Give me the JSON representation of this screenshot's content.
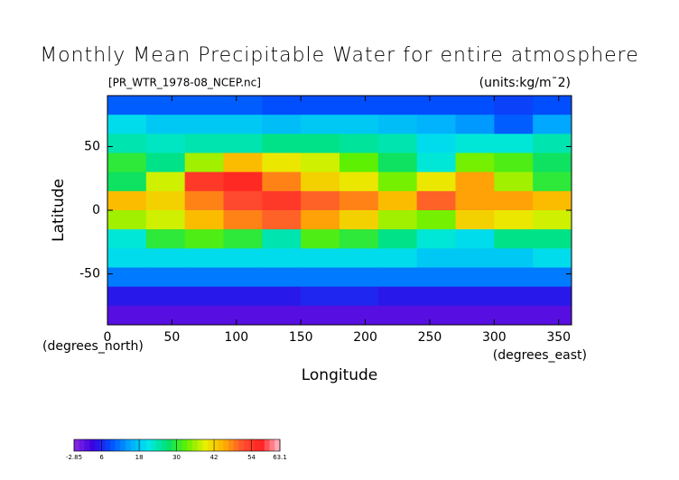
{
  "chart_data": {
    "type": "heatmap",
    "title": "Monthly Mean Precipitable Water for entire atmosphere",
    "subtitle": "[PR_WTR_1978-08_NCEP.nc]",
    "units": "(units:kg/m¯2)",
    "xlabel": "Longitude",
    "xlabel_note": "(degrees_east)",
    "ylabel": "Latitude",
    "ylabel_note": "(degrees_north)",
    "x": [
      15,
      45,
      75,
      105,
      135,
      165,
      195,
      225,
      255,
      285,
      315,
      345
    ],
    "y": [
      82.5,
      67.5,
      52.5,
      37.5,
      22.5,
      7.5,
      -7.5,
      -22.5,
      -37.5,
      -52.5,
      -67.5,
      -82.5
    ],
    "z": [
      [
        10,
        10,
        10,
        10,
        9,
        9,
        9,
        9,
        9,
        9,
        8,
        9
      ],
      [
        20,
        18,
        18,
        18,
        17,
        18,
        18,
        17,
        16,
        14,
        10,
        15
      ],
      [
        24,
        23,
        24,
        24,
        26,
        26,
        25,
        24,
        20,
        22,
        22,
        24
      ],
      [
        30,
        26,
        36,
        44,
        40,
        38,
        33,
        28,
        22,
        34,
        32,
        28
      ],
      [
        28,
        38,
        54,
        56,
        48,
        42,
        40,
        34,
        40,
        46,
        36,
        30
      ],
      [
        44,
        42,
        48,
        52,
        54,
        50,
        48,
        44,
        50,
        46,
        46,
        44
      ],
      [
        36,
        38,
        44,
        48,
        50,
        46,
        42,
        36,
        34,
        42,
        40,
        38
      ],
      [
        22,
        30,
        32,
        30,
        24,
        32,
        30,
        26,
        22,
        20,
        26,
        26
      ],
      [
        20,
        20,
        20,
        20,
        20,
        20,
        20,
        20,
        18,
        18,
        18,
        20
      ],
      [
        12,
        12,
        12,
        12,
        12,
        12,
        12,
        12,
        12,
        12,
        12,
        12
      ],
      [
        5,
        5,
        5,
        5,
        5,
        6,
        6,
        5,
        5,
        5,
        5,
        5
      ],
      [
        1,
        1,
        1,
        1,
        1,
        1,
        1,
        1,
        1,
        1,
        1,
        1
      ]
    ],
    "xlim": [
      0,
      360
    ],
    "ylim": [
      -90,
      90
    ],
    "xticks": [
      0,
      50,
      100,
      150,
      200,
      250,
      300,
      350
    ],
    "yticks": [
      -50,
      0,
      50
    ],
    "colorbar": {
      "lim": [
        -2.85,
        63.1
      ],
      "ticks": [
        -2.85,
        6,
        18,
        30,
        42,
        54,
        63.1
      ],
      "colors": [
        "#8a2be2",
        "#3a00e0",
        "#0050ff",
        "#00aaff",
        "#00e8e8",
        "#00e070",
        "#60f000",
        "#e8f000",
        "#ffb000",
        "#ff5030",
        "#ff2020",
        "#ffc0d0"
      ]
    }
  }
}
